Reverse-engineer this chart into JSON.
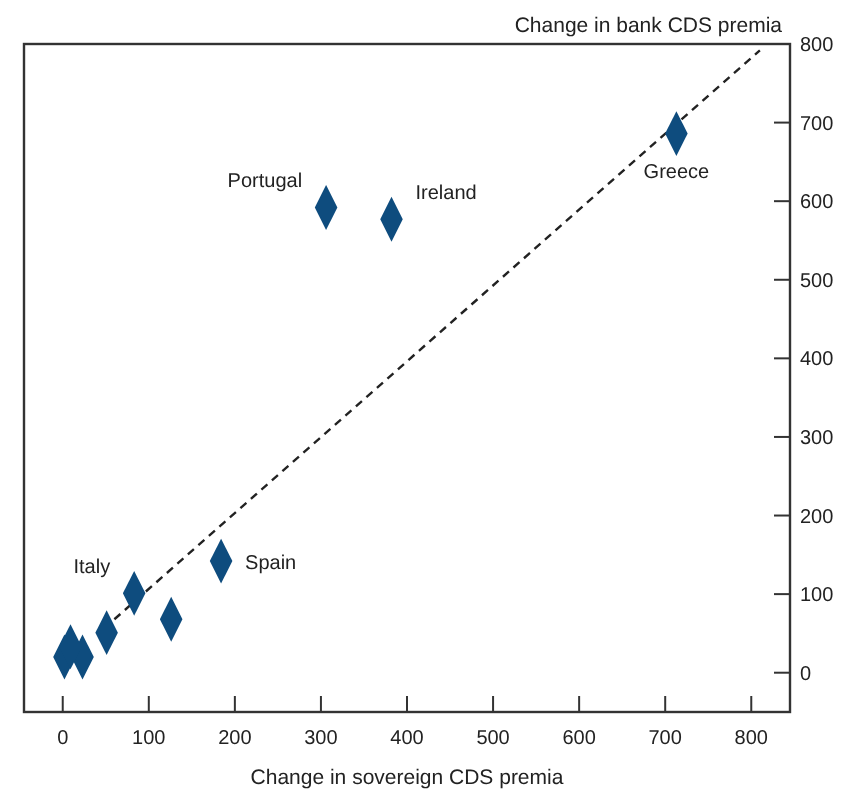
{
  "chart_data": {
    "type": "scatter",
    "xlabel": "Change in sovereign CDS premia",
    "ylabel": "Change in bank CDS premia",
    "xlim": [
      -45,
      845
    ],
    "ylim": [
      -50,
      800
    ],
    "xticks": [
      0,
      100,
      200,
      300,
      400,
      500,
      600,
      700,
      800
    ],
    "yticks": [
      0,
      100,
      200,
      300,
      400,
      500,
      600,
      700,
      800
    ],
    "grid": false,
    "series": [
      {
        "color": "#0e4c7e",
        "marker": "diamond",
        "x": [
          2,
          23,
          9,
          51,
          83,
          126,
          184,
          306,
          382,
          713
        ],
        "values": [
          20,
          20,
          33,
          51,
          101,
          68,
          142,
          592,
          577,
          686
        ]
      },
      {
        "type": "line",
        "color": "#222222",
        "line_style": "dashed",
        "marker": "none",
        "x": [
          60,
          810
        ],
        "values": [
          68,
          792
        ]
      }
    ],
    "annotations": [
      {
        "text": "Italy",
        "x": 83,
        "y": 101
      },
      {
        "text": "Spain",
        "x": 184,
        "y": 142
      },
      {
        "text": "Portugal",
        "x": 306,
        "y": 592
      },
      {
        "text": "Ireland",
        "x": 382,
        "y": 577
      },
      {
        "text": "Greece",
        "x": 713,
        "y": 686
      }
    ]
  }
}
